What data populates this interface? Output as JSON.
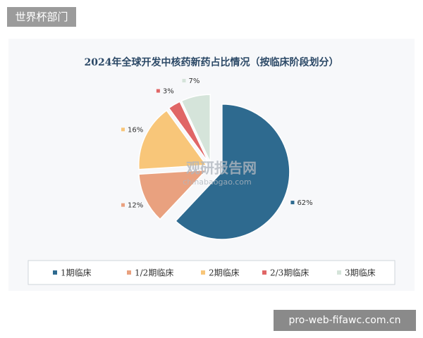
{
  "tag": "世界杯部门",
  "site": "pro-web-fifawc.com.cn",
  "chart_data": {
    "type": "pie",
    "title": "2024年全球开发中核药新药占比情况（按临床阶段划分）",
    "watermark": [
      "观研报告网",
      "chinabaogao.com"
    ],
    "categories": [
      "1期临床",
      "1/2期临床",
      "2期临床",
      "2/3期临床",
      "3期临床"
    ],
    "values": [
      62,
      12,
      16,
      3,
      7
    ],
    "value_labels": [
      "62%",
      "12%",
      "16%",
      "3%",
      "7%"
    ],
    "colors": [
      "#2e6a8f",
      "#e9a17f",
      "#f8c679",
      "#e06666",
      "#d5e4da"
    ],
    "legend": "bottom"
  }
}
